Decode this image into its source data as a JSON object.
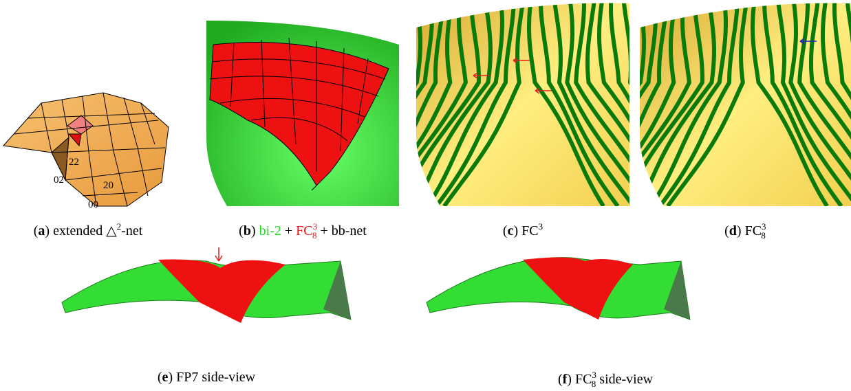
{
  "panels": [
    {
      "id": "a",
      "caption": [
        {
          "text": "(",
          "style": "n"
        },
        {
          "text": "a",
          "style": "b"
        },
        {
          "text": ") extended △",
          "style": "n"
        },
        {
          "text": "2",
          "style": "sup"
        },
        {
          "text": "-net",
          "style": "n"
        }
      ],
      "labels": [
        "22",
        "20",
        "02",
        "00"
      ]
    },
    {
      "id": "b",
      "caption": [
        {
          "text": "(",
          "style": "n"
        },
        {
          "text": "b",
          "style": "b"
        },
        {
          "text": ") ",
          "style": "n"
        },
        {
          "text": "bi-2",
          "style": "n",
          "color": "#22dd22"
        },
        {
          "text": " + ",
          "style": "n"
        },
        {
          "text": "FC",
          "style": "n",
          "color": "#ee1111"
        },
        {
          "text": "3",
          "style": "sup",
          "color": "#ee1111"
        },
        {
          "text": "8",
          "style": "sub",
          "color": "#ee1111"
        },
        {
          "text": " + bb-net",
          "style": "n"
        }
      ]
    },
    {
      "id": "c",
      "caption": [
        {
          "text": "(",
          "style": "n"
        },
        {
          "text": "c",
          "style": "b"
        },
        {
          "text": ") FC",
          "style": "n"
        },
        {
          "text": "3",
          "style": "sup"
        }
      ]
    },
    {
      "id": "d",
      "caption": [
        {
          "text": "(",
          "style": "n"
        },
        {
          "text": "d",
          "style": "b"
        },
        {
          "text": ") FC",
          "style": "n"
        },
        {
          "text": "3",
          "style": "sup"
        },
        {
          "text": "8",
          "style": "sub"
        }
      ]
    },
    {
      "id": "e",
      "caption": [
        {
          "text": "(",
          "style": "n"
        },
        {
          "text": "e",
          "style": "b"
        },
        {
          "text": ") FP7 side-view",
          "style": "n"
        }
      ]
    },
    {
      "id": "f",
      "caption": [
        {
          "text": "(",
          "style": "n"
        },
        {
          "text": "f",
          "style": "b"
        },
        {
          "text": ") FC",
          "style": "n"
        },
        {
          "text": "3",
          "style": "sup"
        },
        {
          "text": "8",
          "style": "sub"
        },
        {
          "text": " side-view",
          "style": "n"
        }
      ]
    }
  ]
}
